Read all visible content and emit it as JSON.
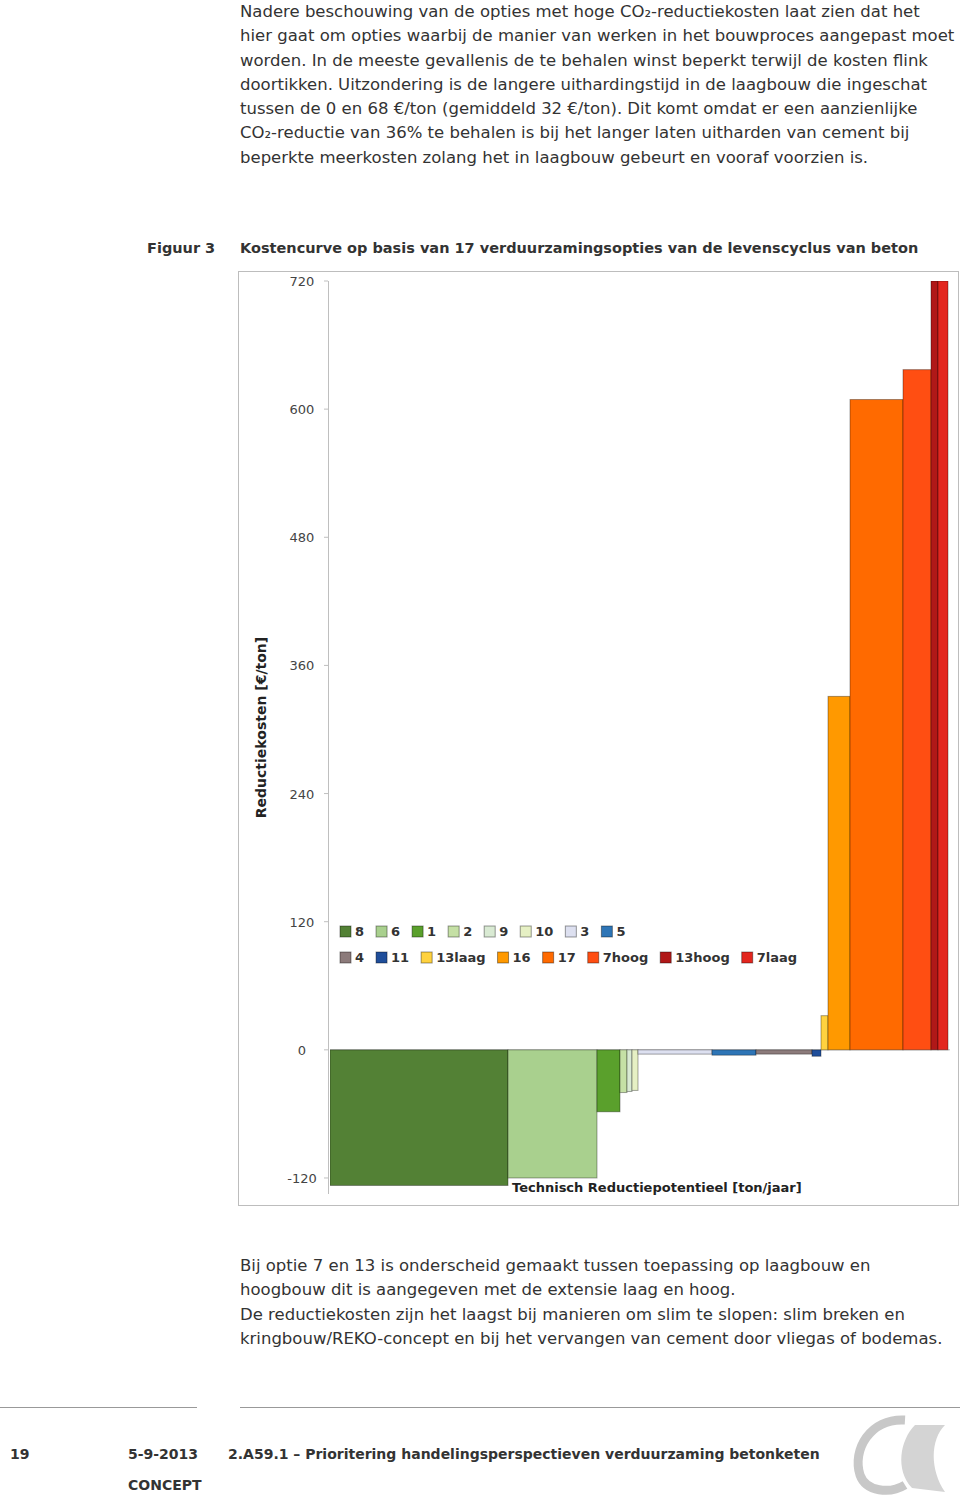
{
  "document": {
    "intro": "Nadere beschouwing van de opties met hoge CO₂-reductiekosten laat zien dat het hier gaat om opties waarbij de manier van werken in het bouwproces aangepast moet worden. In de meeste gevallenis de te behalen winst beperkt terwijl de kosten flink doortikken. Uitzondering is de langere uithardingstijd in de laagbouw die ingeschat tussen de 0 en 68 €/ton (gemiddeld 32 €/ton). Dit komt omdat er een aanzienlijke CO₂-reductie van 36% te behalen is bij het langer laten uitharden van cement bij beperkte meerkosten zolang het in laagbouw gebeurt en vooraf voorzien is.",
    "figure_label": "Figuur 3",
    "figure_caption": "Kostencurve op basis van 17 verduurzamingsopties van de levenscyclus van beton",
    "notes": [
      "Bij optie 7 en 13 is onderscheid gemaakt tussen toepassing op laagbouw en hoogbouw dit is aangegeven met de extensie laag en hoog.",
      "De reductiekosten zijn het laagst bij manieren om slim te slopen: slim breken en kringbouw/REKO-concept en bij het vervangen van cement door vliegas of bodemas."
    ],
    "footer": {
      "page": "19",
      "date": "5-9-2013",
      "status": "CONCEPT",
      "reference": "2.A59.1 – Prioritering handelingsperspectieven verduurzaming betonketen"
    }
  },
  "chart_data": {
    "type": "bar",
    "y_label": "Reductiekosten [€/ton]",
    "x_label": "Technisch Reductiepotentieel [ton/jaar]",
    "categories": [
      "8",
      "6",
      "1",
      "2",
      "9",
      "10",
      "3",
      "5",
      "4",
      "11",
      "13laag",
      "16",
      "17",
      "7hoog",
      "13hoog",
      "7laag"
    ],
    "values": [
      -127,
      -120,
      -58,
      -40,
      -39,
      -38,
      -4,
      -5,
      -4,
      -6,
      32,
      331,
      609,
      637,
      720,
      720
    ],
    "potential": [
      178,
      89,
      23,
      7,
      5,
      6,
      74,
      44,
      56,
      9,
      7,
      22,
      53,
      28,
      7,
      10
    ],
    "colors": [
      "#538135",
      "#a9d08e",
      "#5aa02c",
      "#c5e0a5",
      "#d9ead3",
      "#e6f0c4",
      "#dde0f0",
      "#2e75b6",
      "#8c7b7b",
      "#1f4e9a",
      "#ffd23f",
      "#ff9900",
      "#ff6a00",
      "#ff4e12",
      "#b01818",
      "#e3261e"
    ],
    "xlim": [
      0,
      620
    ],
    "ylim": [
      -135,
      720
    ],
    "yticks": [
      -120,
      0,
      120,
      240,
      360,
      480,
      600,
      720
    ],
    "tick_labels": "y",
    "legend": "center"
  }
}
